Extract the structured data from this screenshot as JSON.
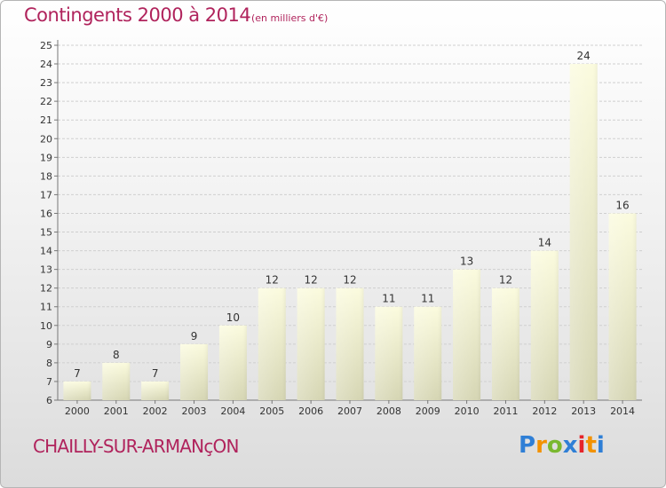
{
  "header": {
    "title": "Contingents 2000 à 2014",
    "subtitle": "(en milliers d'€)"
  },
  "footer": {
    "commune": "CHAILLY-SUR-ARMANçON",
    "logo_letters": [
      "P",
      "r",
      "o",
      "x",
      "i",
      "t",
      "i"
    ],
    "logo_colors": [
      "#2f7fd6",
      "#f39200",
      "#7ab82f",
      "#2f7fd6",
      "#e6242a",
      "#f39200",
      "#2f7fd6"
    ]
  },
  "colors": {
    "title": "#b0235c",
    "bar_top": "#fbfbde",
    "bar_bottom": "#d6d6b4",
    "grid": "#cfcfcf"
  },
  "chart_data": {
    "type": "bar",
    "title": "Contingents 2000 à 2014",
    "subtitle": "(en milliers d'€)",
    "categories": [
      "2000",
      "2001",
      "2002",
      "2003",
      "2004",
      "2005",
      "2006",
      "2007",
      "2008",
      "2009",
      "2010",
      "2011",
      "2012",
      "2013",
      "2014"
    ],
    "values": [
      7,
      8,
      7,
      9,
      10,
      12,
      12,
      12,
      11,
      11,
      13,
      12,
      14,
      24,
      16
    ],
    "ylim": [
      6,
      25
    ],
    "yticks": [
      "6",
      "7",
      "8",
      "9",
      "10",
      "11",
      "12",
      "13",
      "14",
      "15",
      "16",
      "17",
      "18",
      "19",
      "20",
      "21",
      "22",
      "23",
      "24",
      "25"
    ],
    "grid": true
  }
}
